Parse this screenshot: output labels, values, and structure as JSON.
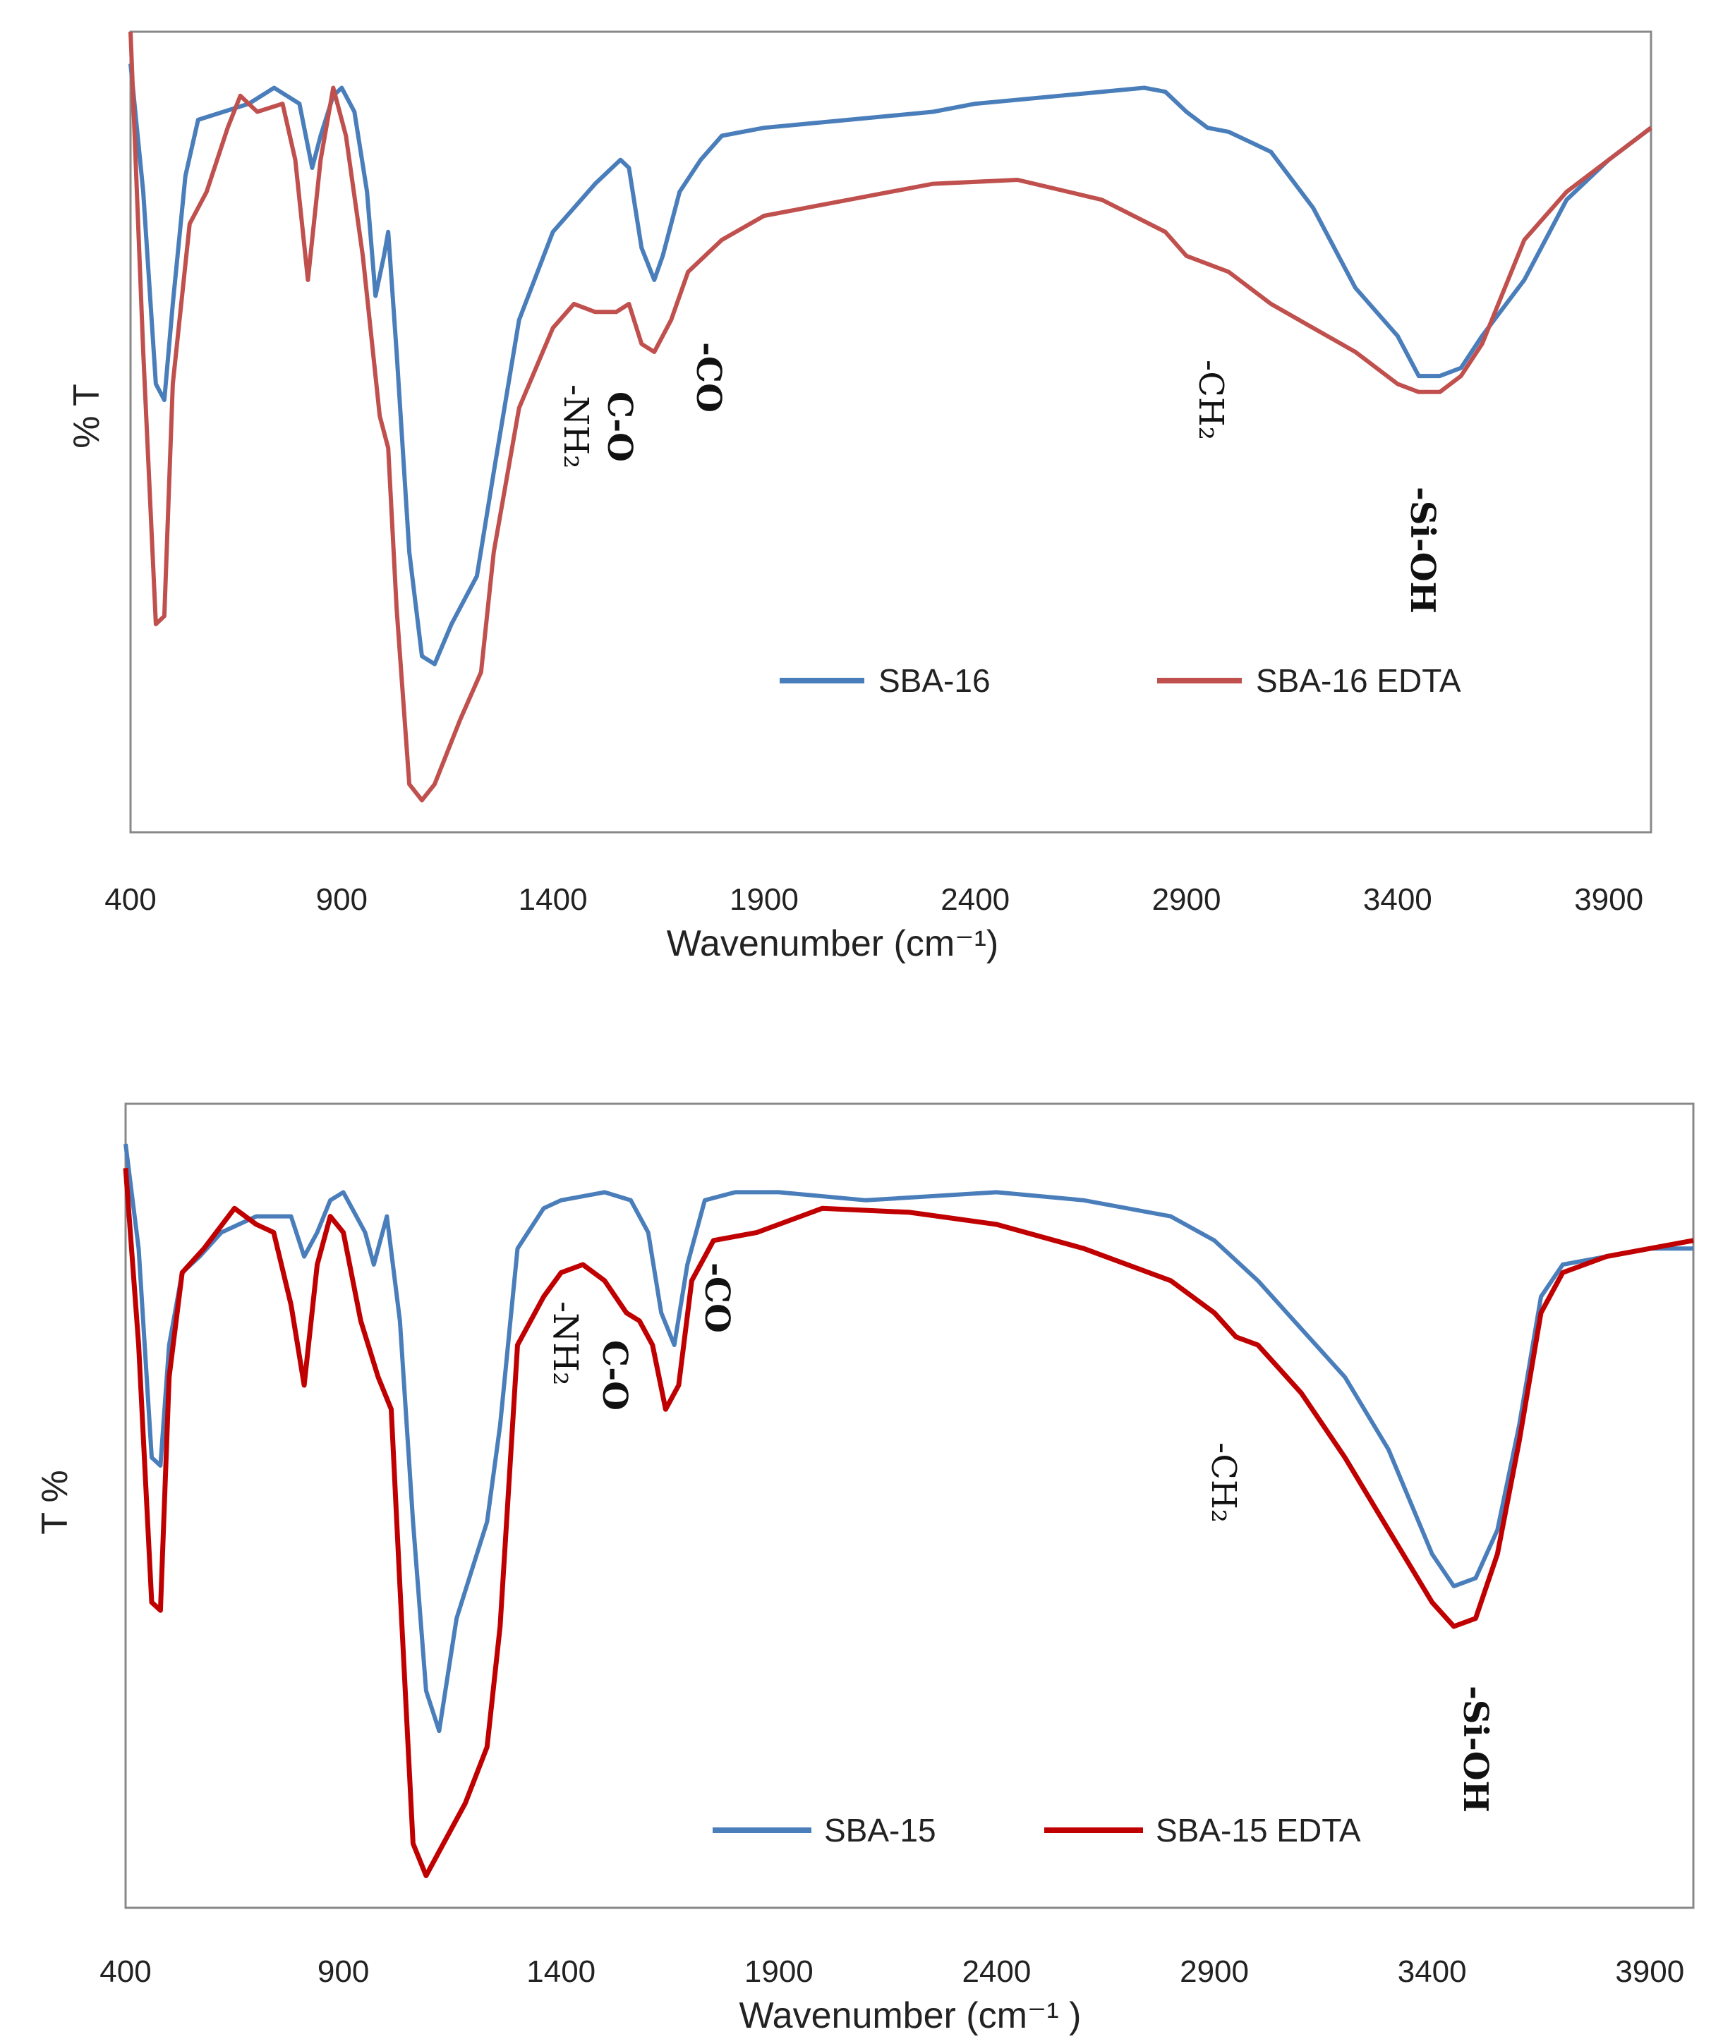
{
  "chart_data": [
    {
      "type": "line",
      "title": "",
      "xlabel": "Wavenumber (cm⁻¹)",
      "ylabel": "% T",
      "xlim": [
        400,
        4000
      ],
      "ylim": [
        0,
        100
      ],
      "xticks": [
        "400",
        "900",
        "1400",
        "1900",
        "2400",
        "2900",
        "3400",
        "3900"
      ],
      "grid": false,
      "legend_position": "bottom-right",
      "series": [
        {
          "name": "SBA-16",
          "color": "#4a7ebb",
          "points": [
            [
              400,
              96
            ],
            [
              430,
              80
            ],
            [
              460,
              56
            ],
            [
              480,
              54
            ],
            [
              500,
              66
            ],
            [
              530,
              82
            ],
            [
              560,
              89
            ],
            [
              620,
              90
            ],
            [
              680,
              91
            ],
            [
              740,
              93
            ],
            [
              800,
              91
            ],
            [
              830,
              83
            ],
            [
              850,
              87
            ],
            [
              880,
              92
            ],
            [
              900,
              93
            ],
            [
              930,
              90
            ],
            [
              960,
              80
            ],
            [
              980,
              67
            ],
            [
              1000,
              72
            ],
            [
              1010,
              75
            ],
            [
              1030,
              60
            ],
            [
              1060,
              35
            ],
            [
              1090,
              22
            ],
            [
              1120,
              21
            ],
            [
              1160,
              26
            ],
            [
              1220,
              32
            ],
            [
              1260,
              45
            ],
            [
              1320,
              64
            ],
            [
              1400,
              75
            ],
            [
              1500,
              81
            ],
            [
              1560,
              84
            ],
            [
              1580,
              83
            ],
            [
              1610,
              73
            ],
            [
              1640,
              69
            ],
            [
              1660,
              72
            ],
            [
              1700,
              80
            ],
            [
              1750,
              84
            ],
            [
              1800,
              87
            ],
            [
              1900,
              88
            ],
            [
              2100,
              89
            ],
            [
              2300,
              90
            ],
            [
              2400,
              91
            ],
            [
              2600,
              92
            ],
            [
              2800,
              93
            ],
            [
              2850,
              92.5
            ],
            [
              2900,
              90
            ],
            [
              2950,
              88
            ],
            [
              3000,
              87.5
            ],
            [
              3100,
              85
            ],
            [
              3200,
              78
            ],
            [
              3300,
              68
            ],
            [
              3400,
              62
            ],
            [
              3450,
              57
            ],
            [
              3500,
              57
            ],
            [
              3550,
              58
            ],
            [
              3600,
              62
            ],
            [
              3700,
              69
            ],
            [
              3800,
              79
            ],
            [
              3900,
              84
            ],
            [
              4000,
              88
            ]
          ]
        },
        {
          "name": "SBA-16 EDTA",
          "color": "#c0504d",
          "points": [
            [
              400,
              100
            ],
            [
              430,
              60
            ],
            [
              460,
              26
            ],
            [
              480,
              27
            ],
            [
              500,
              56
            ],
            [
              540,
              76
            ],
            [
              580,
              80
            ],
            [
              630,
              88
            ],
            [
              660,
              92
            ],
            [
              700,
              90
            ],
            [
              760,
              91
            ],
            [
              790,
              84
            ],
            [
              820,
              69
            ],
            [
              850,
              84
            ],
            [
              880,
              93
            ],
            [
              910,
              87
            ],
            [
              950,
              72
            ],
            [
              990,
              52
            ],
            [
              1010,
              48
            ],
            [
              1030,
              28
            ],
            [
              1060,
              6
            ],
            [
              1090,
              4
            ],
            [
              1120,
              6
            ],
            [
              1180,
              14
            ],
            [
              1230,
              20
            ],
            [
              1260,
              35
            ],
            [
              1320,
              53
            ],
            [
              1400,
              63
            ],
            [
              1450,
              66
            ],
            [
              1500,
              65
            ],
            [
              1550,
              65
            ],
            [
              1580,
              66
            ],
            [
              1610,
              61
            ],
            [
              1640,
              60
            ],
            [
              1680,
              64
            ],
            [
              1720,
              70
            ],
            [
              1800,
              74
            ],
            [
              1900,
              77
            ],
            [
              2100,
              79
            ],
            [
              2300,
              81
            ],
            [
              2500,
              81.5
            ],
            [
              2700,
              79
            ],
            [
              2850,
              75
            ],
            [
              2900,
              72
            ],
            [
              2950,
              71
            ],
            [
              3000,
              70
            ],
            [
              3100,
              66
            ],
            [
              3200,
              63
            ],
            [
              3300,
              60
            ],
            [
              3400,
              56
            ],
            [
              3450,
              55
            ],
            [
              3500,
              55
            ],
            [
              3550,
              57
            ],
            [
              3600,
              61
            ],
            [
              3700,
              74
            ],
            [
              3800,
              80
            ],
            [
              3900,
              84
            ],
            [
              4000,
              88
            ]
          ]
        }
      ],
      "annotations": [
        {
          "text": "-NH₂",
          "x": 1440
        },
        {
          "text": "C-O",
          "x": 1545
        },
        {
          "text": "-CO",
          "x": 1755
        },
        {
          "text": "-CH₂",
          "x": 2930
        },
        {
          "text": "-Si-OH",
          "x": 3490
        }
      ]
    },
    {
      "type": "line",
      "title": "",
      "xlabel": "Wavenumber (cm⁻¹ )",
      "ylabel": "T %",
      "xlim": [
        400,
        4000
      ],
      "ylim": [
        0,
        100
      ],
      "xticks": [
        "400",
        "900",
        "1400",
        "1900",
        "2400",
        "2900",
        "3400",
        "3900"
      ],
      "grid": false,
      "legend_position": "bottom-center",
      "series": [
        {
          "name": "SBA-15",
          "color": "#4a7ebb",
          "points": [
            [
              400,
              95
            ],
            [
              430,
              82
            ],
            [
              460,
              56
            ],
            [
              480,
              55
            ],
            [
              500,
              70
            ],
            [
              530,
              79
            ],
            [
              570,
              81
            ],
            [
              620,
              84
            ],
            [
              700,
              86
            ],
            [
              780,
              86
            ],
            [
              810,
              81
            ],
            [
              840,
              84
            ],
            [
              870,
              88
            ],
            [
              900,
              89
            ],
            [
              950,
              84
            ],
            [
              970,
              80
            ],
            [
              990,
              84
            ],
            [
              1000,
              86
            ],
            [
              1030,
              73
            ],
            [
              1060,
              48
            ],
            [
              1090,
              27
            ],
            [
              1120,
              22
            ],
            [
              1160,
              36
            ],
            [
              1230,
              48
            ],
            [
              1260,
              60
            ],
            [
              1300,
              82
            ],
            [
              1360,
              87
            ],
            [
              1400,
              88
            ],
            [
              1500,
              89
            ],
            [
              1560,
              88
            ],
            [
              1600,
              84
            ],
            [
              1630,
              74
            ],
            [
              1660,
              70
            ],
            [
              1690,
              80
            ],
            [
              1730,
              88
            ],
            [
              1800,
              89
            ],
            [
              1900,
              89
            ],
            [
              2100,
              88
            ],
            [
              2400,
              89
            ],
            [
              2600,
              88
            ],
            [
              2800,
              86
            ],
            [
              2900,
              83
            ],
            [
              3000,
              78
            ],
            [
              3100,
              72
            ],
            [
              3200,
              66
            ],
            [
              3300,
              57
            ],
            [
              3400,
              44
            ],
            [
              3450,
              40
            ],
            [
              3500,
              41
            ],
            [
              3550,
              47
            ],
            [
              3600,
              60
            ],
            [
              3650,
              76
            ],
            [
              3700,
              80
            ],
            [
              3800,
              81
            ],
            [
              3900,
              82
            ],
            [
              4000,
              82
            ]
          ]
        },
        {
          "name": "SBA-15 EDTA",
          "color": "#c00000",
          "points": [
            [
              400,
              92
            ],
            [
              430,
              70
            ],
            [
              460,
              38
            ],
            [
              480,
              37
            ],
            [
              500,
              66
            ],
            [
              530,
              79
            ],
            [
              580,
              82
            ],
            [
              650,
              87
            ],
            [
              700,
              85
            ],
            [
              740,
              84
            ],
            [
              780,
              75
            ],
            [
              810,
              65
            ],
            [
              840,
              80
            ],
            [
              870,
              86
            ],
            [
              900,
              84
            ],
            [
              940,
              73
            ],
            [
              980,
              66
            ],
            [
              1010,
              62
            ],
            [
              1030,
              40
            ],
            [
              1060,
              8
            ],
            [
              1090,
              4
            ],
            [
              1120,
              7
            ],
            [
              1180,
              13
            ],
            [
              1230,
              20
            ],
            [
              1260,
              35
            ],
            [
              1300,
              70
            ],
            [
              1360,
              76
            ],
            [
              1400,
              79
            ],
            [
              1450,
              80
            ],
            [
              1500,
              78
            ],
            [
              1550,
              74
            ],
            [
              1580,
              73
            ],
            [
              1610,
              70
            ],
            [
              1640,
              62
            ],
            [
              1670,
              65
            ],
            [
              1700,
              78
            ],
            [
              1750,
              83
            ],
            [
              1850,
              84
            ],
            [
              2000,
              87
            ],
            [
              2200,
              86.5
            ],
            [
              2400,
              85
            ],
            [
              2600,
              82
            ],
            [
              2800,
              78
            ],
            [
              2900,
              74
            ],
            [
              2950,
              71
            ],
            [
              3000,
              70
            ],
            [
              3100,
              64
            ],
            [
              3200,
              56
            ],
            [
              3300,
              47
            ],
            [
              3400,
              38
            ],
            [
              3450,
              35
            ],
            [
              3500,
              36
            ],
            [
              3550,
              44
            ],
            [
              3600,
              58
            ],
            [
              3650,
              74
            ],
            [
              3700,
              79
            ],
            [
              3800,
              81
            ],
            [
              3900,
              82
            ],
            [
              4000,
              83
            ]
          ]
        }
      ],
      "annotations": [
        {
          "text": "-NH₂",
          "x": 1430
        },
        {
          "text": "C-O",
          "x": 1535
        },
        {
          "text": "-CO",
          "x": 1765
        },
        {
          "text": "-CH₂",
          "x": 2940
        },
        {
          "text": "-Si-OH",
          "x": 3525
        }
      ]
    }
  ]
}
